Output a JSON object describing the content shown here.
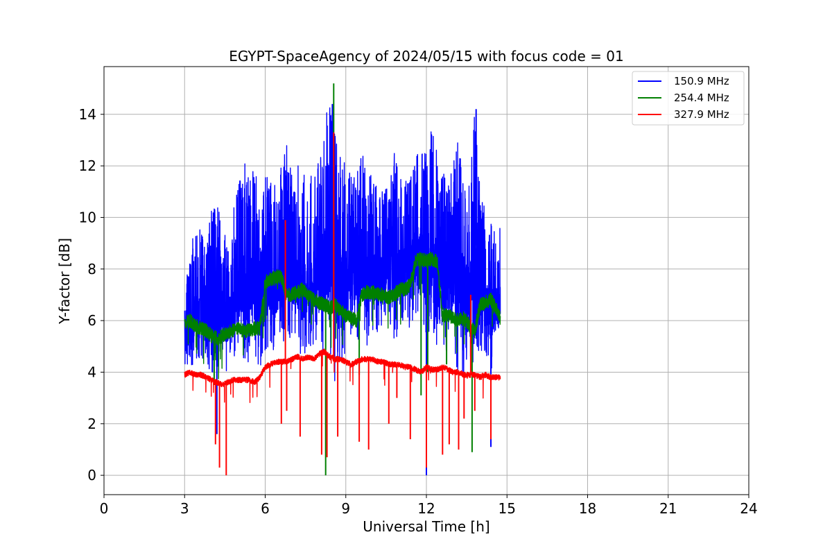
{
  "chart_data": {
    "type": "line",
    "title": "EGYPT-SpaceAgency of 2024/05/15 with focus code = 01",
    "xlabel": "Universal Time [h]",
    "ylabel": "Y-factor [dB]",
    "xlim": [
      0,
      24
    ],
    "ylim": [
      -0.75,
      15.85
    ],
    "xticks": [
      0,
      3,
      6,
      9,
      12,
      15,
      18,
      21,
      24
    ],
    "yticks": [
      0,
      2,
      4,
      6,
      8,
      10,
      12,
      14
    ],
    "grid": true,
    "legend_position": "top-right",
    "series": [
      {
        "name": "150.9 MHz",
        "color": "#0000ff",
        "x": [
          3.0,
          3.2,
          3.4,
          3.6,
          3.8,
          4.0,
          4.2,
          4.4,
          4.6,
          4.8,
          5.0,
          5.2,
          5.4,
          5.6,
          5.8,
          6.0,
          6.2,
          6.4,
          6.6,
          6.8,
          7.0,
          7.2,
          7.4,
          7.6,
          7.8,
          8.0,
          8.2,
          8.4,
          8.6,
          8.8,
          9.0,
          9.2,
          9.4,
          9.6,
          9.8,
          10.0,
          10.2,
          10.4,
          10.6,
          10.8,
          11.0,
          11.2,
          11.4,
          11.6,
          11.8,
          12.0,
          12.2,
          12.4,
          12.6,
          12.8,
          13.0,
          13.2,
          13.4,
          13.6,
          13.8,
          14.0,
          14.2,
          14.4,
          14.6,
          14.75
        ],
        "low": [
          4.3,
          4.1,
          3.9,
          4.5,
          4.0,
          3.7,
          3.8,
          4.2,
          4.0,
          4.3,
          4.6,
          4.5,
          4.2,
          4.4,
          4.1,
          4.8,
          4.6,
          5.0,
          4.8,
          5.5,
          4.6,
          5.0,
          4.4,
          4.9,
          4.8,
          5.2,
          4.5,
          4.9,
          3.5,
          4.4,
          4.8,
          5.5,
          5.0,
          5.5,
          5.0,
          5.5,
          5.4,
          5.7,
          6.0,
          5.2,
          5.5,
          5.8,
          5.6,
          5.8,
          6.2,
          5.0,
          5.6,
          5.0,
          4.6,
          4.8,
          4.4,
          4.0,
          3.8,
          3.8,
          4.4,
          4.5,
          4.6,
          4.0,
          4.6,
          5.0
        ],
        "high": [
          8.2,
          8.6,
          9.8,
          9.6,
          8.6,
          10.5,
          10.8,
          9.7,
          9.5,
          10.3,
          11.2,
          12.7,
          11.6,
          12.4,
          10.2,
          11.6,
          11.7,
          11.2,
          12.2,
          12.8,
          11.6,
          12.1,
          12.0,
          11.8,
          11.9,
          12.2,
          13.8,
          14.9,
          13.4,
          12.5,
          12.1,
          11.6,
          12.4,
          13.2,
          11.4,
          11.8,
          11.0,
          11.2,
          11.3,
          12.5,
          11.6,
          11.8,
          12.0,
          12.8,
          12.7,
          12.9,
          13.4,
          12.5,
          11.8,
          11.3,
          12.2,
          13.2,
          12.8,
          11.5,
          14.2,
          11.0,
          10.5,
          9.9,
          9.6,
          9.6
        ],
        "spikes": [
          [
            4.2,
            1.6
          ],
          [
            8.5,
            14.4
          ],
          [
            12.0,
            0.0
          ],
          [
            13.85,
            14.2
          ],
          [
            14.4,
            1.1
          ]
        ]
      },
      {
        "name": "254.4 MHz",
        "color": "#008000",
        "x": [
          3.0,
          3.2,
          3.4,
          3.6,
          3.8,
          4.0,
          4.2,
          4.4,
          4.6,
          4.8,
          5.0,
          5.2,
          5.4,
          5.6,
          5.8,
          6.0,
          6.2,
          6.4,
          6.6,
          6.8,
          7.0,
          7.2,
          7.4,
          7.6,
          7.8,
          8.0,
          8.2,
          8.4,
          8.6,
          8.8,
          9.0,
          9.2,
          9.4,
          9.6,
          9.8,
          10.0,
          10.2,
          10.4,
          10.6,
          10.8,
          11.0,
          11.2,
          11.4,
          11.6,
          11.8,
          12.0,
          12.2,
          12.4,
          12.6,
          12.8,
          13.0,
          13.2,
          13.4,
          13.6,
          13.8,
          14.0,
          14.2,
          14.4,
          14.6,
          14.75
        ],
        "y": [
          5.9,
          6.0,
          5.8,
          5.7,
          5.6,
          5.4,
          5.3,
          5.4,
          5.5,
          5.6,
          5.7,
          5.6,
          5.6,
          5.7,
          5.7,
          7.5,
          7.6,
          7.7,
          7.7,
          7.0,
          7.0,
          7.1,
          7.2,
          7.0,
          6.8,
          6.7,
          6.6,
          6.5,
          6.6,
          6.4,
          6.2,
          6.1,
          6.0,
          7.0,
          7.1,
          7.1,
          7.0,
          7.0,
          6.9,
          7.0,
          7.2,
          7.2,
          7.4,
          8.3,
          8.4,
          8.3,
          8.4,
          8.3,
          6.2,
          6.2,
          6.1,
          6.0,
          6.1,
          5.8,
          5.6,
          6.6,
          6.7,
          6.8,
          6.5,
          6.1
        ],
        "spikes": [
          [
            4.1,
            3.5
          ],
          [
            8.25,
            0.0
          ],
          [
            8.55,
            15.2
          ],
          [
            9.5,
            3.9
          ],
          [
            11.8,
            3.1
          ],
          [
            12.05,
            4.0
          ],
          [
            12.75,
            4.3
          ],
          [
            13.7,
            0.9
          ]
        ]
      },
      {
        "name": "327.9 MHz",
        "color": "#ff0000",
        "x": [
          3.0,
          3.2,
          3.4,
          3.6,
          3.8,
          4.0,
          4.2,
          4.4,
          4.6,
          4.8,
          5.0,
          5.2,
          5.4,
          5.6,
          5.8,
          6.0,
          6.2,
          6.4,
          6.6,
          6.8,
          7.0,
          7.2,
          7.4,
          7.6,
          7.8,
          8.0,
          8.2,
          8.4,
          8.6,
          8.8,
          9.0,
          9.2,
          9.4,
          9.6,
          9.8,
          10.0,
          10.2,
          10.4,
          10.6,
          10.8,
          11.0,
          11.2,
          11.4,
          11.6,
          11.8,
          12.0,
          12.2,
          12.4,
          12.6,
          12.8,
          13.0,
          13.2,
          13.4,
          13.6,
          13.8,
          14.0,
          14.2,
          14.4,
          14.6,
          14.75
        ],
        "y": [
          3.9,
          4.0,
          3.9,
          3.9,
          3.8,
          3.7,
          3.6,
          3.5,
          3.6,
          3.7,
          3.7,
          3.7,
          3.7,
          3.6,
          3.8,
          4.2,
          4.3,
          4.4,
          4.4,
          4.4,
          4.5,
          4.6,
          4.5,
          4.6,
          4.5,
          4.7,
          4.8,
          4.6,
          4.5,
          4.5,
          4.4,
          4.3,
          4.4,
          4.5,
          4.5,
          4.5,
          4.4,
          4.4,
          4.3,
          4.3,
          4.3,
          4.2,
          4.2,
          4.1,
          4.0,
          4.2,
          4.1,
          4.1,
          4.2,
          4.1,
          4.0,
          4.0,
          3.9,
          3.9,
          3.9,
          3.8,
          3.9,
          3.8,
          3.8,
          3.8
        ],
        "spikes": [
          [
            4.15,
            1.2
          ],
          [
            4.3,
            0.3
          ],
          [
            4.55,
            0.0
          ],
          [
            6.6,
            2.0
          ],
          [
            6.75,
            9.9
          ],
          [
            6.8,
            2.5
          ],
          [
            7.3,
            1.5
          ],
          [
            8.1,
            0.8
          ],
          [
            8.3,
            0.7
          ],
          [
            8.55,
            13.3
          ],
          [
            8.7,
            1.5
          ],
          [
            9.5,
            1.3
          ],
          [
            9.85,
            1.0
          ],
          [
            10.6,
            2.0
          ],
          [
            10.9,
            3.0
          ],
          [
            11.4,
            1.4
          ],
          [
            12.0,
            0.3
          ],
          [
            12.6,
            0.8
          ],
          [
            12.85,
            1.2
          ],
          [
            13.2,
            1.0
          ],
          [
            13.4,
            2.2
          ],
          [
            13.65,
            7.0
          ],
          [
            13.8,
            2.5
          ],
          [
            14.4,
            1.4
          ]
        ]
      }
    ]
  }
}
